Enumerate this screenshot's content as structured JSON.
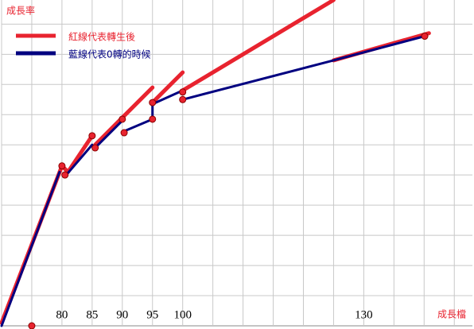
{
  "chart_data": {
    "type": "line",
    "y_label": "成長率",
    "x_label": "成長檔",
    "xlim": [
      70,
      148
    ],
    "ylim": [
      0,
      10.8
    ],
    "xticks": [
      80,
      85,
      90,
      95,
      100,
      130
    ],
    "xgrid": [
      70,
      75,
      80,
      85,
      90,
      95,
      100,
      105,
      110,
      115,
      120,
      125,
      130,
      135,
      140,
      145
    ],
    "ygrid": [
      1,
      2,
      3,
      4,
      5,
      6,
      7,
      8,
      9,
      10
    ],
    "legend": "top-left",
    "series": [
      {
        "name": "紅線代表轉生後",
        "color": "#e8232f",
        "x": [
          70,
          80,
          81,
          85,
          null,
          85.5,
          90,
          95,
          null,
          95,
          100,
          null,
          100,
          125,
          null,
          125,
          140.8
        ],
        "values": [
          0.1,
          5.3,
          5.1,
          6.3,
          null,
          6.0,
          6.9,
          7.9,
          null,
          7.4,
          8.4,
          null,
          7.8,
          10.8,
          null,
          8.8,
          9.7
        ]
      },
      {
        "name": "藍線代表0轉的時候",
        "color": "#000080",
        "x": [
          70,
          79.6,
          null,
          80.5,
          85,
          null,
          85.5,
          90,
          null,
          90.3,
          95,
          95,
          100,
          null,
          100,
          125,
          140.1
        ],
        "values": [
          0,
          5.1,
          null,
          4.95,
          6.0,
          null,
          5.9,
          6.8,
          null,
          6.45,
          6.85,
          7.35,
          7.8,
          null,
          7.5,
          8.8,
          9.6
        ]
      }
    ],
    "markers": {
      "color": "#e8232f",
      "x": [
        75,
        80,
        80.5,
        85,
        85.5,
        90,
        90.3,
        95,
        95,
        100,
        100,
        140.1
      ],
      "values": [
        0,
        5.3,
        5.0,
        6.3,
        5.9,
        6.85,
        6.4,
        7.4,
        6.85,
        7.75,
        7.5,
        9.6
      ]
    }
  }
}
